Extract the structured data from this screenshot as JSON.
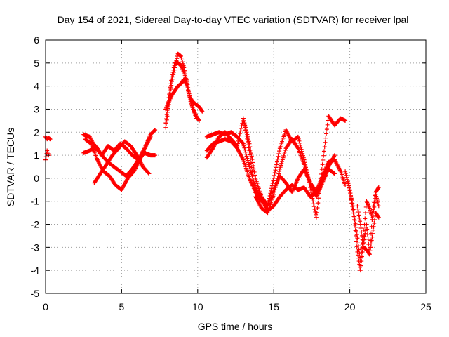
{
  "chart_data": {
    "type": "scatter",
    "title": "Day 154 of 2021, Sidereal Day-to-day VTEC variation (SDTVAR) for receiver lpal",
    "xlabel": "GPS time / hours",
    "ylabel": "SDTVAR / TECUs",
    "xlim": [
      0,
      25
    ],
    "ylim": [
      -5,
      6
    ],
    "xticks": [
      0,
      5,
      10,
      15,
      20,
      25
    ],
    "yticks": [
      -5,
      -4,
      -3,
      -2,
      -1,
      0,
      1,
      2,
      3,
      4,
      5,
      6
    ],
    "grid": true,
    "marker": "+",
    "color": "#ff0000",
    "series": [
      {
        "x": [
          0.0,
          0.1,
          0.2,
          0.3
        ],
        "y": [
          1.8,
          1.7,
          1.75,
          1.7
        ]
      },
      {
        "x": [
          0.0,
          0.1,
          0.2
        ],
        "y": [
          0.8,
          1.2,
          1.0
        ]
      },
      {
        "x": [
          2.5,
          2.9,
          3.3,
          3.7,
          4.1,
          4.5,
          4.9,
          5.3,
          5.7,
          6.1,
          6.5,
          6.9,
          7.2
        ],
        "y": [
          1.9,
          1.8,
          1.3,
          1.0,
          1.4,
          1.2,
          1.5,
          1.3,
          1.0,
          0.8,
          1.3,
          1.9,
          2.1
        ]
      },
      {
        "x": [
          2.5,
          2.9,
          3.3,
          3.7,
          4.1,
          4.5,
          4.9,
          5.3,
          5.7,
          6.1,
          6.5,
          6.9,
          7.2
        ],
        "y": [
          1.1,
          1.2,
          1.4,
          1.0,
          0.7,
          0.5,
          0.3,
          0.1,
          0.4,
          0.8,
          1.1,
          1.0,
          1.0
        ]
      },
      {
        "x": [
          2.6,
          3.0,
          3.4,
          3.8,
          4.2,
          4.6,
          5.0,
          5.4,
          5.8,
          6.2,
          6.6,
          6.9
        ],
        "y": [
          1.7,
          1.5,
          0.8,
          0.3,
          0.1,
          -0.3,
          -0.5,
          0.0,
          0.3,
          0.8,
          1.4,
          1.8
        ]
      },
      {
        "x": [
          3.2,
          3.6,
          4.0,
          4.4,
          4.8,
          5.2,
          5.6,
          6.0,
          6.4,
          6.8
        ],
        "y": [
          -0.2,
          0.2,
          0.6,
          1.0,
          1.3,
          1.6,
          1.4,
          1.0,
          0.5,
          0.2
        ]
      },
      {
        "x": [
          7.9,
          8.1,
          8.3,
          8.5,
          8.7,
          8.9,
          9.1,
          9.3,
          9.5,
          9.7,
          9.9,
          10.1,
          10.3
        ],
        "y": [
          2.2,
          3.2,
          4.2,
          4.8,
          5.4,
          5.3,
          4.8,
          4.0,
          3.5,
          3.3,
          3.2,
          3.1,
          2.9
        ]
      },
      {
        "x": [
          7.9,
          8.1,
          8.3,
          8.5,
          8.7,
          8.9,
          9.1,
          9.3,
          9.5,
          9.7,
          9.9,
          10.1
        ],
        "y": [
          2.4,
          3.5,
          4.4,
          5.0,
          5.0,
          4.9,
          4.6,
          4.2,
          3.4,
          3.0,
          2.7,
          2.5
        ]
      },
      {
        "x": [
          7.9,
          8.1,
          8.3,
          8.5,
          8.7,
          8.9,
          9.1,
          9.3,
          9.5,
          9.7,
          9.9
        ],
        "y": [
          3.0,
          3.3,
          3.6,
          3.8,
          4.0,
          4.1,
          4.3,
          4.0,
          3.5,
          3.0,
          2.6
        ]
      },
      {
        "x": [
          10.6,
          11.0,
          11.4,
          11.8,
          12.2,
          12.6,
          13.0,
          13.4,
          13.8,
          14.2,
          14.6,
          15.0,
          15.4,
          15.8,
          16.2,
          16.6,
          17.0,
          17.4,
          17.8,
          18.2,
          18.6,
          19.0
        ],
        "y": [
          1.8,
          1.9,
          2.0,
          1.9,
          2.0,
          1.8,
          1.5,
          0.5,
          -0.4,
          -0.9,
          -1.4,
          -1.2,
          -0.8,
          -0.5,
          -0.3,
          -0.5,
          -0.4,
          -0.8,
          -0.6,
          0.0,
          0.5,
          1.0
        ]
      },
      {
        "x": [
          10.6,
          11.0,
          11.4,
          11.8,
          12.2,
          12.6,
          13.0,
          13.4,
          13.8,
          14.2,
          14.6,
          15.0,
          15.4,
          15.8,
          16.2,
          16.6,
          17.0,
          17.4,
          17.8,
          18.2,
          18.6,
          19.0,
          19.4,
          19.7
        ],
        "y": [
          1.2,
          1.5,
          1.6,
          1.7,
          1.6,
          1.3,
          0.8,
          0.0,
          -0.6,
          -1.0,
          -1.2,
          -0.5,
          0.1,
          -0.2,
          -0.6,
          0.0,
          0.4,
          -0.2,
          -0.6,
          0.1,
          0.7,
          0.8,
          0.3,
          -0.3
        ]
      },
      {
        "x": [
          10.6,
          11.0,
          11.4,
          11.8,
          12.2,
          12.6,
          13.0,
          13.4,
          13.8,
          14.2,
          14.6,
          15.0,
          15.4,
          15.8,
          16.2,
          16.6,
          17.0,
          17.4,
          17.8,
          18.2,
          18.6,
          19.0
        ],
        "y": [
          0.9,
          1.3,
          1.8,
          2.0,
          1.7,
          1.4,
          2.6,
          1.2,
          -0.8,
          -1.3,
          -1.5,
          -0.7,
          0.4,
          1.3,
          1.7,
          1.3,
          0.6,
          -0.2,
          -0.8,
          -0.2,
          0.4,
          0.2
        ]
      },
      {
        "x": [
          13.0,
          13.4,
          13.8,
          14.2,
          14.6,
          15.0,
          15.4,
          15.8,
          16.2,
          16.6,
          17.0,
          17.4,
          17.8,
          18.2,
          18.6,
          19.0,
          19.4,
          19.7
        ],
        "y": [
          2.6,
          1.5,
          0.0,
          -0.8,
          -1.2,
          0.0,
          1.3,
          2.1,
          1.6,
          1.8,
          0.8,
          -0.4,
          -1.7,
          0.6,
          2.7,
          2.3,
          2.6,
          2.5
        ]
      },
      {
        "x": [
          19.7,
          20.0,
          20.3,
          20.5,
          20.7,
          20.9,
          21.1,
          21.3,
          21.5,
          21.7,
          21.9
        ],
        "y": [
          0.3,
          -0.5,
          -1.8,
          -3.2,
          -4.0,
          -2.8,
          -2.0,
          -3.3,
          -2.4,
          -1.5,
          -1.7
        ]
      },
      {
        "x": [
          19.9,
          20.2,
          20.5,
          20.7,
          20.9,
          21.1,
          21.3,
          21.5,
          21.7,
          21.9
        ],
        "y": [
          -0.2,
          -1.2,
          -2.6,
          -3.6,
          -2.5,
          -1.0,
          -1.3,
          -1.8,
          -0.7,
          -1.2
        ]
      },
      {
        "x": [
          20.5,
          20.7,
          20.9,
          21.1,
          21.3,
          21.5,
          21.7,
          21.9
        ],
        "y": [
          -1.2,
          -2.0,
          -3.0,
          -3.1,
          -3.3,
          -1.5,
          -0.6,
          -0.4
        ]
      }
    ]
  }
}
